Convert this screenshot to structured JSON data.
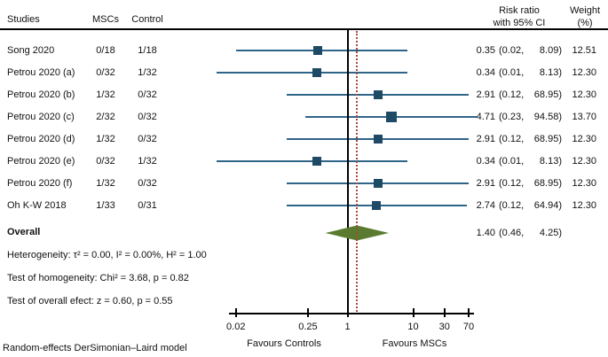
{
  "table": {
    "col_studies": "Studies",
    "col_mscs": "MSCs",
    "col_control": "Control",
    "col_rr_line1": "Risk ratio",
    "col_rr_line2": "with 95% CI",
    "col_weight_line1": "Weight",
    "col_weight_line2": "(%)",
    "rows": [
      {
        "study": "Song 2020",
        "mscs": "0/18",
        "control": "1/18",
        "est": "0.35",
        "lo": "(0.02,",
        "hi": "8.09)",
        "weight": "12.51"
      },
      {
        "study": "Petrou 2020 (a)",
        "mscs": "0/32",
        "control": "1/32",
        "est": "0.34",
        "lo": "(0.01,",
        "hi": "8.13)",
        "weight": "12.30"
      },
      {
        "study": "Petrou 2020 (b)",
        "mscs": "1/32",
        "control": "0/32",
        "est": "2.91",
        "lo": "(0.12,",
        "hi": "68.95)",
        "weight": "12.30"
      },
      {
        "study": "Petrou 2020 (c)",
        "mscs": "2/32",
        "control": "0/32",
        "est": "4.71",
        "lo": "(0.23,",
        "hi": "94.58)",
        "weight": "13.70"
      },
      {
        "study": "Petrou 2020 (d)",
        "mscs": "1/32",
        "control": "0/32",
        "est": "2.91",
        "lo": "(0.12,",
        "hi": "68.95)",
        "weight": "12.30"
      },
      {
        "study": "Petrou 2020 (e)",
        "mscs": "0/32",
        "control": "1/32",
        "est": "0.34",
        "lo": "(0.01,",
        "hi": "8.13)",
        "weight": "12.30"
      },
      {
        "study": "Petrou 2020 (f)",
        "mscs": "1/32",
        "control": "0/32",
        "est": "2.91",
        "lo": "(0.12,",
        "hi": "68.95)",
        "weight": "12.30"
      },
      {
        "study": "Oh K-W 2018",
        "mscs": "1/33",
        "control": "0/31",
        "est": "2.74",
        "lo": "(0.12,",
        "hi": "64.94)",
        "weight": "12.30"
      }
    ]
  },
  "overall": {
    "label": "Overall",
    "est": "1.40",
    "lo": "(0.46,",
    "hi": "4.25)"
  },
  "stats": [
    "Heterogeneity: τ² = 0.00, I² = 0.00%, H² = 1.00",
    "Test of homogeneity: Chi² = 3.68, p = 0.82",
    "Test of overall efect: z = 0.60, p = 0.55"
  ],
  "axis": {
    "tick_labels": [
      "0.02",
      "0.25",
      "1",
      "10",
      "30",
      "70"
    ],
    "left_label": "Favours Controls",
    "right_label": "Favours MSCs"
  },
  "footer": "Random-effects DerSimonian–Laird model",
  "colors": {
    "ci_line": "#2f6489",
    "square": "#1e4a66",
    "diamond": "#5a7b2f",
    "ref_line": "#a84a3e",
    "axis": "#000000"
  },
  "chart_data": {
    "type": "scatter",
    "chart_kind": "forest-plot",
    "title": "",
    "x_scale": "log10",
    "x_ticks": [
      0.02,
      0.25,
      1,
      10,
      30,
      70
    ],
    "x_range": [
      0.01,
      95
    ],
    "null_line_x": 1,
    "overall_ref_line_x": 1.4,
    "grid": false,
    "xlabel_left": "Favours Controls",
    "xlabel_right": "Favours MSCs",
    "effect_measure": "Risk ratio with 95% CI",
    "studies": [
      {
        "study": "Song 2020",
        "mscs": "0/18",
        "control": "1/18",
        "rr": 0.35,
        "ci_low": 0.02,
        "ci_high": 8.09,
        "weight_pct": 12.51
      },
      {
        "study": "Petrou 2020 (a)",
        "mscs": "0/32",
        "control": "1/32",
        "rr": 0.34,
        "ci_low": 0.01,
        "ci_high": 8.13,
        "weight_pct": 12.3
      },
      {
        "study": "Petrou 2020 (b)",
        "mscs": "1/32",
        "control": "0/32",
        "rr": 2.91,
        "ci_low": 0.12,
        "ci_high": 68.95,
        "weight_pct": 12.3
      },
      {
        "study": "Petrou 2020 (c)",
        "mscs": "2/32",
        "control": "0/32",
        "rr": 4.71,
        "ci_low": 0.23,
        "ci_high": 94.58,
        "weight_pct": 13.7
      },
      {
        "study": "Petrou 2020 (d)",
        "mscs": "1/32",
        "control": "0/32",
        "rr": 2.91,
        "ci_low": 0.12,
        "ci_high": 68.95,
        "weight_pct": 12.3
      },
      {
        "study": "Petrou 2020 (e)",
        "mscs": "0/32",
        "control": "1/32",
        "rr": 0.34,
        "ci_low": 0.01,
        "ci_high": 8.13,
        "weight_pct": 12.3
      },
      {
        "study": "Petrou 2020 (f)",
        "mscs": "1/32",
        "control": "0/32",
        "rr": 2.91,
        "ci_low": 0.12,
        "ci_high": 68.95,
        "weight_pct": 12.3
      },
      {
        "study": "Oh K-W 2018",
        "mscs": "1/33",
        "control": "0/31",
        "rr": 2.74,
        "ci_low": 0.12,
        "ci_high": 64.94,
        "weight_pct": 12.3
      }
    ],
    "overall": {
      "label": "Overall",
      "rr": 1.4,
      "ci_low": 0.46,
      "ci_high": 4.25
    },
    "heterogeneity": "Heterogeneity: τ² = 0.00, I² = 0.00%, H² = 1.00",
    "homogeneity_test": "Test of homogeneity: Chi² = 3.68, p = 0.82",
    "overall_effect_test": "Test of overall efect: z = 0.60, p = 0.55",
    "model": "Random-effects DerSimonian–Laird model"
  }
}
